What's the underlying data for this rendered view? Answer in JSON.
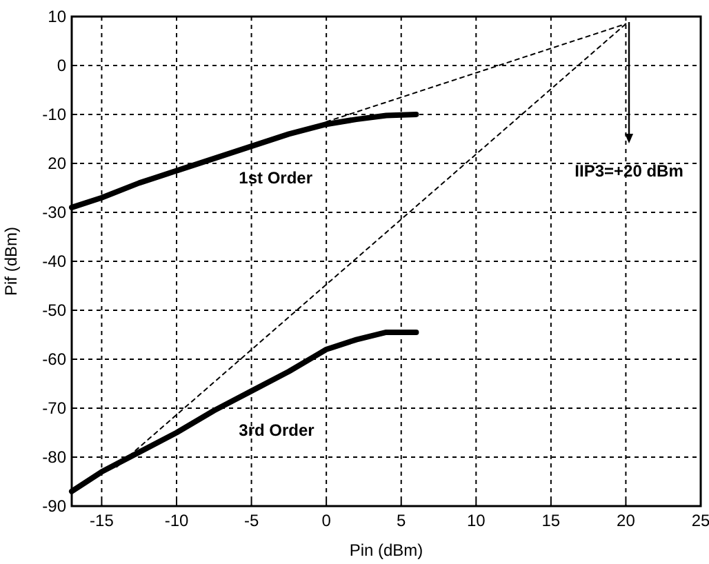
{
  "chart_data": {
    "type": "line",
    "xlabel": "Pin (dBm)",
    "ylabel": "Pif (dBm)",
    "xlim": [
      -17,
      25
    ],
    "ylim": [
      -90,
      10
    ],
    "xticks": [
      -15,
      -10,
      -5,
      0,
      5,
      10,
      15,
      20,
      25
    ],
    "yticks": [
      10,
      0,
      -10,
      {
        "value": -20,
        "label": "20"
      },
      -30,
      -40,
      -50,
      -60,
      -70,
      -80,
      -90
    ],
    "grid": true,
    "line_style": "solid",
    "series": [
      {
        "name": "1st Order",
        "color": "#000000",
        "x": [
          -17,
          -15,
          -12.5,
          -10,
          -7.5,
          -5,
          -2.5,
          0,
          2,
          4,
          6
        ],
        "values": [
          -29,
          -27,
          -24,
          -21.5,
          -19,
          -16.5,
          -14,
          -12,
          -11,
          -10.2,
          -10
        ]
      },
      {
        "name": "3rd Order",
        "color": "#000000",
        "x": [
          -17,
          -15,
          -12.5,
          -10,
          -7.5,
          -5,
          -2.5,
          0,
          2,
          4,
          6
        ],
        "values": [
          -87,
          -83,
          -79,
          -75,
          -70.5,
          -66.5,
          -62.5,
          -58,
          -56,
          -54.5,
          -54.5
        ]
      },
      {
        "color": "#000000",
        "line_style": "dashed",
        "x": [
          0,
          20
        ],
        "values": [
          -11.5,
          8.5
        ]
      },
      {
        "color": "#000000",
        "line_style": "dashed",
        "x": [
          -14,
          20
        ],
        "values": [
          -82,
          8.5
        ]
      }
    ],
    "annotations": [
      "IIP3=+20 dBm"
    ]
  }
}
